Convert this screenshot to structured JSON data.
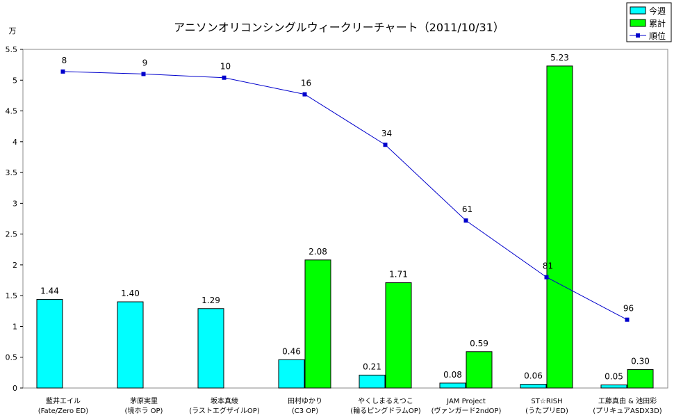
{
  "chart_data": {
    "type": "bar",
    "title": "アニソンオリコンシングルウィークリーチャート（2011/10/31）",
    "ylabel": "万",
    "ylim": [
      0,
      5.5
    ],
    "yticks": [
      "0",
      "0.5",
      "1",
      "1.5",
      "2",
      "2.5",
      "3",
      "3.5",
      "4",
      "4.5",
      "5",
      "5.5"
    ],
    "ytick_values": [
      0,
      0.5,
      1,
      1.5,
      2,
      2.5,
      3,
      3.5,
      4,
      4.5,
      5,
      5.5
    ],
    "categories": [
      [
        "藍井エイル",
        "(Fate/Zero ED)"
      ],
      [
        "茅原実里",
        "(境ホラ OP)"
      ],
      [
        "坂本真綾",
        "(ラストエグザイルOP)"
      ],
      [
        "田村ゆかり",
        "(C3 OP)"
      ],
      [
        "やくしまるえつこ",
        "(輪るピングドラムOP)"
      ],
      [
        "JAM Project",
        "(ヴァンガード2ndOP)"
      ],
      [
        "ST☆RISH",
        "(うたプリED)"
      ],
      [
        "工藤真由 & 池田彩",
        "(プリキュアASDX3D)"
      ]
    ],
    "series": [
      {
        "name": "今週",
        "values": [
          1.44,
          1.4,
          1.29,
          0.46,
          0.21,
          0.08,
          0.06,
          0.05
        ],
        "labels": [
          "1.44",
          "1.40",
          "1.29",
          "0.46",
          "0.21",
          "0.08",
          "0.06",
          "0.05"
        ],
        "color": "#00ffff"
      },
      {
        "name": "累計",
        "values": [
          null,
          null,
          null,
          2.08,
          1.71,
          0.59,
          5.23,
          0.3
        ],
        "labels": [
          "",
          "",
          "",
          "2.08",
          "1.71",
          "0.59",
          "5.23",
          "0.30"
        ],
        "color": "#00ff00"
      },
      {
        "name": "順位",
        "values": [
          8,
          9,
          10,
          16,
          34,
          61,
          81,
          96
        ],
        "labels": [
          "8",
          "9",
          "10",
          "16",
          "34",
          "61",
          "81",
          "96"
        ],
        "plotted_y": [
          5.14,
          5.1,
          5.04,
          4.77,
          3.95,
          2.72,
          1.8,
          1.11
        ],
        "color": "#0000cc"
      }
    ],
    "legend": "top-right",
    "grid": false
  }
}
